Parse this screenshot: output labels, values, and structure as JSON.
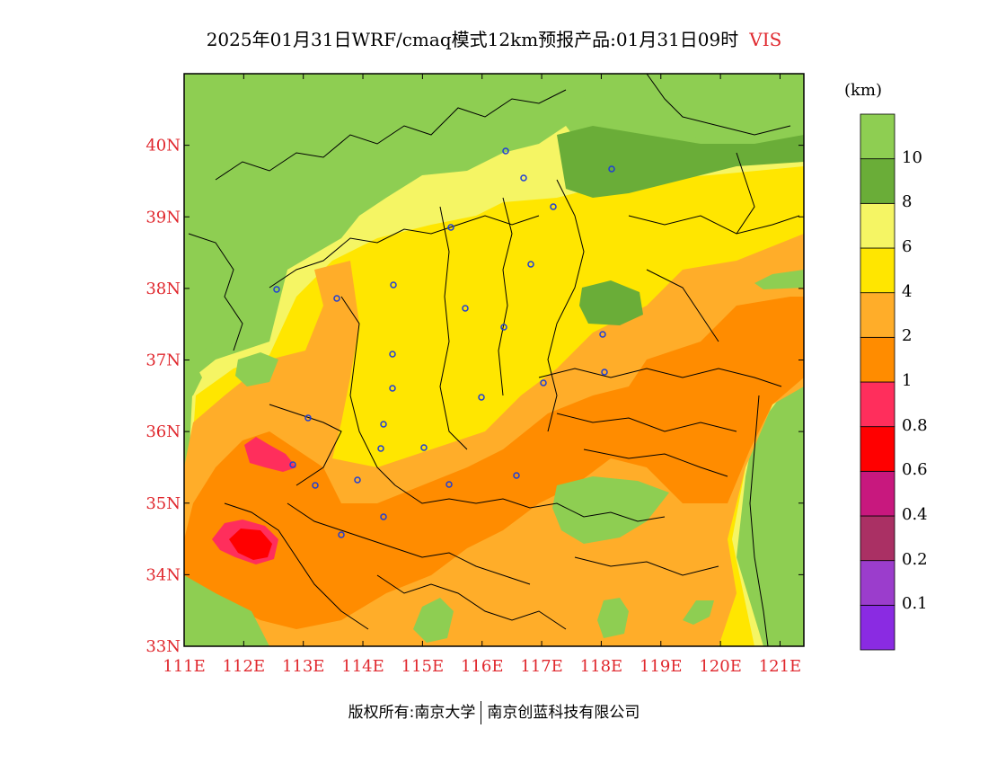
{
  "title": "2025年01月31日WRF/cmaq模式12km预报产品:01月31日09时",
  "variable": "VIS",
  "unit": "(km)",
  "footer": {
    "left": "版权所有:南京大学",
    "right": "南京创蓝科技有限公司"
  },
  "map": {
    "lon_range": [
      111,
      121.4
    ],
    "lat_range": [
      33,
      41
    ],
    "lon_ticks": [
      "111E",
      "112E",
      "113E",
      "114E",
      "115E",
      "116E",
      "117E",
      "118E",
      "119E",
      "120E",
      "121E"
    ],
    "lat_ticks": [
      "33N",
      "34N",
      "35N",
      "36N",
      "37N",
      "38N",
      "39N",
      "40N"
    ]
  },
  "colorbar": {
    "colors": [
      "#8a2be2",
      "#9b3dcc",
      "#aa3064",
      "#c8187e",
      "#ff0000",
      "#ff2e5c",
      "#ff8c00",
      "#ffad29",
      "#ffe600",
      "#f5f564",
      "#6aad38",
      "#8ece52"
    ],
    "labels": [
      "0.1",
      "0.2",
      "0.4",
      "0.6",
      "0.8",
      "1",
      "2",
      "4",
      "6",
      "8",
      "10"
    ]
  },
  "colors": {
    "green": "#8ece52",
    "dark_green": "#6aad38",
    "light_yellow": "#f5f564",
    "yellow": "#ffe600",
    "light_orange": "#ffad29",
    "orange": "#ff8c00",
    "pink": "#ff2e5c",
    "red": "#ff0000"
  }
}
